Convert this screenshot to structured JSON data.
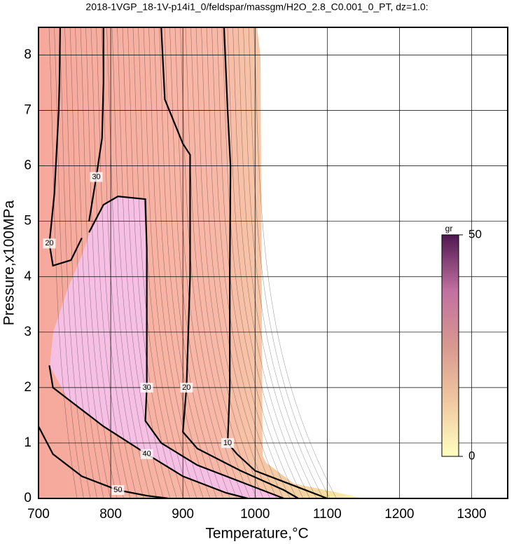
{
  "chart_data": {
    "type": "contour",
    "title": "2018-1VGP_18-1V-p14i1_0/feldspar/massgm/H2O_2.8_C0.001_0_PT, dz=1.0:",
    "x_label": "Temperature,°C",
    "y_label": "Pressure,x100MPa",
    "xlim": [
      700,
      1350
    ],
    "xticks": [
      700,
      800,
      900,
      1000,
      1100,
      1200,
      1300
    ],
    "ylim": [
      0,
      8.5
    ],
    "yticks": [
      0,
      1,
      2,
      3,
      4,
      5,
      6,
      7,
      8
    ],
    "grid": true,
    "colorbar": {
      "label": "gr",
      "lim": [
        0,
        50
      ],
      "ticks": [
        0,
        50
      ],
      "colors": [
        "#ffffc0",
        "#f0c8a0",
        "#d89890",
        "#c070a0",
        "#501850"
      ]
    },
    "series": [
      {
        "level": 10,
        "x": [
          957,
          962,
          966,
          965,
          965,
          962,
          975,
          1000,
          1060,
          1100
        ],
        "y": [
          8.5,
          7.0,
          6.0,
          4.0,
          2.0,
          1.0,
          0.8,
          0.5,
          0.2,
          0
        ]
      },
      {
        "level": 20,
        "x": [
          870,
          875,
          900,
          910,
          910,
          905,
          900,
          920,
          980,
          1040,
          1060
        ],
        "y": [
          8.5,
          7.2,
          6.4,
          6.2,
          4.0,
          2.0,
          1.2,
          0.9,
          0.5,
          0.15,
          0
        ]
      },
      {
        "level": 30,
        "x": [
          770,
          790,
          810,
          848,
          850,
          850,
          848,
          870,
          920,
          980,
          1040
        ],
        "y": [
          4.8,
          5.3,
          5.45,
          5.4,
          4.5,
          2.0,
          1.4,
          1.0,
          0.6,
          0.3,
          0
        ]
      },
      {
        "level": 30,
        "x": [
          790,
          790,
          788,
          780,
          775,
          770
        ],
        "y": [
          8.5,
          7.5,
          6.5,
          5.8,
          5.4,
          5.0
        ]
      },
      {
        "level": 20,
        "x": [
          730,
          729,
          728,
          722,
          715,
          720,
          745,
          760
        ],
        "y": [
          8.5,
          7.5,
          7.0,
          5.5,
          4.6,
          4.2,
          4.3,
          4.7
        ]
      },
      {
        "level": 40,
        "x": [
          715,
          720,
          740,
          790,
          850,
          900,
          960,
          990
        ],
        "y": [
          2.4,
          2.0,
          1.8,
          1.3,
          0.8,
          0.4,
          0.1,
          0
        ]
      },
      {
        "level": 50,
        "x": [
          700,
          720,
          760,
          810,
          850,
          880
        ],
        "y": [
          1.3,
          0.8,
          0.4,
          0.15,
          0.05,
          0
        ]
      }
    ]
  }
}
